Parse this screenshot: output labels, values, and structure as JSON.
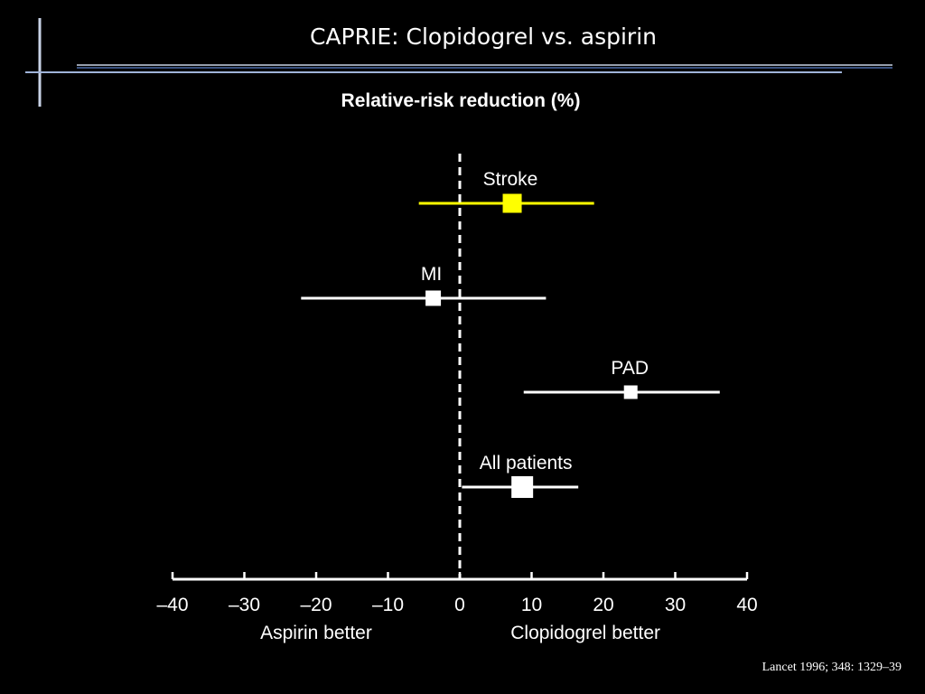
{
  "slide": {
    "title": "CAPRIE: Clopidogrel vs. aspirin",
    "citation": "Lancet 1996; 348: 1329–39"
  },
  "colors": {
    "background": "#000000",
    "foreground": "#ffffff",
    "highlight": "#ffff00",
    "accent_rule": "#9fb3d8"
  },
  "chart_data": {
    "type": "forest",
    "title": "Relative-risk reduction (%)",
    "xlim": [
      -40,
      40
    ],
    "xticks": [
      -40,
      -30,
      -20,
      -10,
      0,
      10,
      20,
      30,
      40
    ],
    "xtick_labels": [
      "–40",
      "–30",
      "–20",
      "–10",
      "0",
      "10",
      "20",
      "30",
      "40"
    ],
    "reference_line": 0,
    "direction_labels": {
      "left": "Aspirin better",
      "right": "Clopidogrel better"
    },
    "series": [
      {
        "name": "Stroke",
        "estimate": 7.3,
        "ci_low": -5.7,
        "ci_high": 18.7,
        "color": "#ffff00",
        "marker_size": "large"
      },
      {
        "name": "MI",
        "estimate": -3.7,
        "ci_low": -22.1,
        "ci_high": 12.0,
        "color": "#ffffff",
        "marker_size": "medium"
      },
      {
        "name": "PAD",
        "estimate": 23.8,
        "ci_low": 8.9,
        "ci_high": 36.2,
        "color": "#ffffff",
        "marker_size": "small"
      },
      {
        "name": "All patients",
        "estimate": 8.7,
        "ci_low": 0.3,
        "ci_high": 16.5,
        "color": "#ffffff",
        "marker_size": "large"
      }
    ]
  }
}
